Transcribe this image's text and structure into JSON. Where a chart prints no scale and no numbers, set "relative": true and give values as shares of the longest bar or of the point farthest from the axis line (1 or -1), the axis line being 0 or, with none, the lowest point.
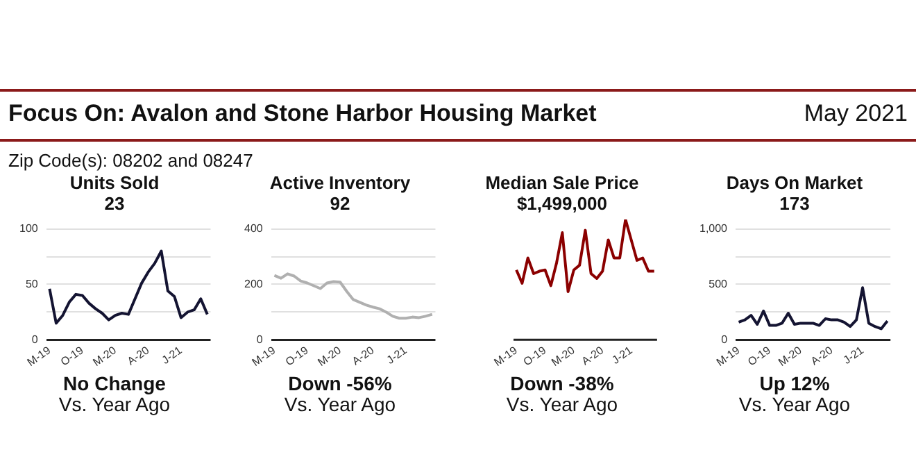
{
  "chart_data": [
    {
      "type": "other",
      "title": "Focus On: Avalon and Stone Harbor Housing Market",
      "subtitle": "May 2021",
      "annotations": [
        "Zip Code(s): 08202 and 08247"
      ]
    },
    {
      "type": "line",
      "title": "Units Sold",
      "subtitle": "23",
      "categories": [
        "M-19",
        null,
        null,
        null,
        null,
        "O-19",
        null,
        null,
        null,
        null,
        "M-20",
        null,
        null,
        null,
        null,
        "A-20",
        null,
        null,
        null,
        null,
        "J-21",
        null,
        null,
        null,
        null
      ],
      "values": [
        46,
        15,
        22,
        34,
        41,
        40,
        33,
        28,
        24,
        18,
        22,
        24,
        23,
        37,
        51,
        61,
        69,
        80,
        44,
        39,
        20,
        25,
        27,
        37,
        23
      ],
      "color": "#141432",
      "marker": "none",
      "grid": "y",
      "ylim": [
        0,
        100
      ],
      "yticks": [
        0,
        {
          "value": 25,
          "label": null
        },
        50,
        {
          "value": 75,
          "label": null
        },
        100
      ],
      "annotations": [
        "No Change",
        "Vs. Year Ago"
      ]
    },
    {
      "type": "line",
      "title": "Active Inventory",
      "subtitle": "92",
      "categories": [
        "M-19",
        null,
        null,
        null,
        null,
        "O-19",
        null,
        null,
        null,
        null,
        "M-20",
        null,
        null,
        null,
        null,
        "A-20",
        null,
        null,
        null,
        null,
        "J-21",
        null,
        null,
        null,
        null
      ],
      "values": [
        232,
        222,
        238,
        230,
        212,
        205,
        195,
        185,
        205,
        210,
        208,
        175,
        145,
        135,
        125,
        118,
        112,
        100,
        85,
        78,
        78,
        82,
        80,
        85,
        92
      ],
      "color": "#b0b0b0",
      "marker": "none",
      "grid": "y",
      "ylim": [
        0,
        400
      ],
      "yticks": [
        0,
        {
          "value": 100,
          "label": null
        },
        200,
        {
          "value": 300,
          "label": null
        },
        400
      ],
      "annotations": [
        "Down -56%",
        "Vs. Year Ago"
      ]
    },
    {
      "type": "line",
      "title": "Median Sale Price",
      "subtitle": "$1,499,000",
      "categories": [
        "M-19",
        null,
        null,
        null,
        null,
        "O-19",
        null,
        null,
        null,
        null,
        "M-20",
        null,
        null,
        null,
        null,
        "A-20",
        null,
        null,
        null,
        null,
        "J-21",
        null,
        null,
        null,
        null
      ],
      "values": [
        0.58,
        0.47,
        0.68,
        0.55,
        0.57,
        0.58,
        0.45,
        0.64,
        0.89,
        0.4,
        0.58,
        0.62,
        0.91,
        0.55,
        0.51,
        0.57,
        0.83,
        0.68,
        0.68,
        1,
        0.83,
        0.66,
        0.68,
        0.57,
        0.57
      ],
      "color": "#8b0000",
      "marker": "none",
      "relative": true,
      "annotations": [
        "Down -38%",
        "Vs. Year Ago"
      ]
    },
    {
      "type": "line",
      "title": "Days On Market",
      "subtitle": "173",
      "categories": [
        "M-19",
        null,
        null,
        null,
        null,
        "O-19",
        null,
        null,
        null,
        null,
        "M-20",
        null,
        null,
        null,
        null,
        "A-20",
        null,
        null,
        null,
        null,
        "J-21",
        null,
        null,
        null,
        null
      ],
      "values": [
        160,
        180,
        220,
        140,
        260,
        130,
        130,
        150,
        240,
        140,
        150,
        150,
        150,
        130,
        190,
        180,
        180,
        160,
        120,
        180,
        470,
        150,
        120,
        100,
        170
      ],
      "color": "#141432",
      "marker": "none",
      "grid": "y",
      "ylim": [
        0,
        1000
      ],
      "yticks": [
        0,
        {
          "value": 250,
          "label": null
        },
        500,
        {
          "value": 750,
          "label": null
        },
        "1,000"
      ],
      "annotations": [
        "Up 12%",
        "Vs. Year Ago"
      ]
    }
  ]
}
